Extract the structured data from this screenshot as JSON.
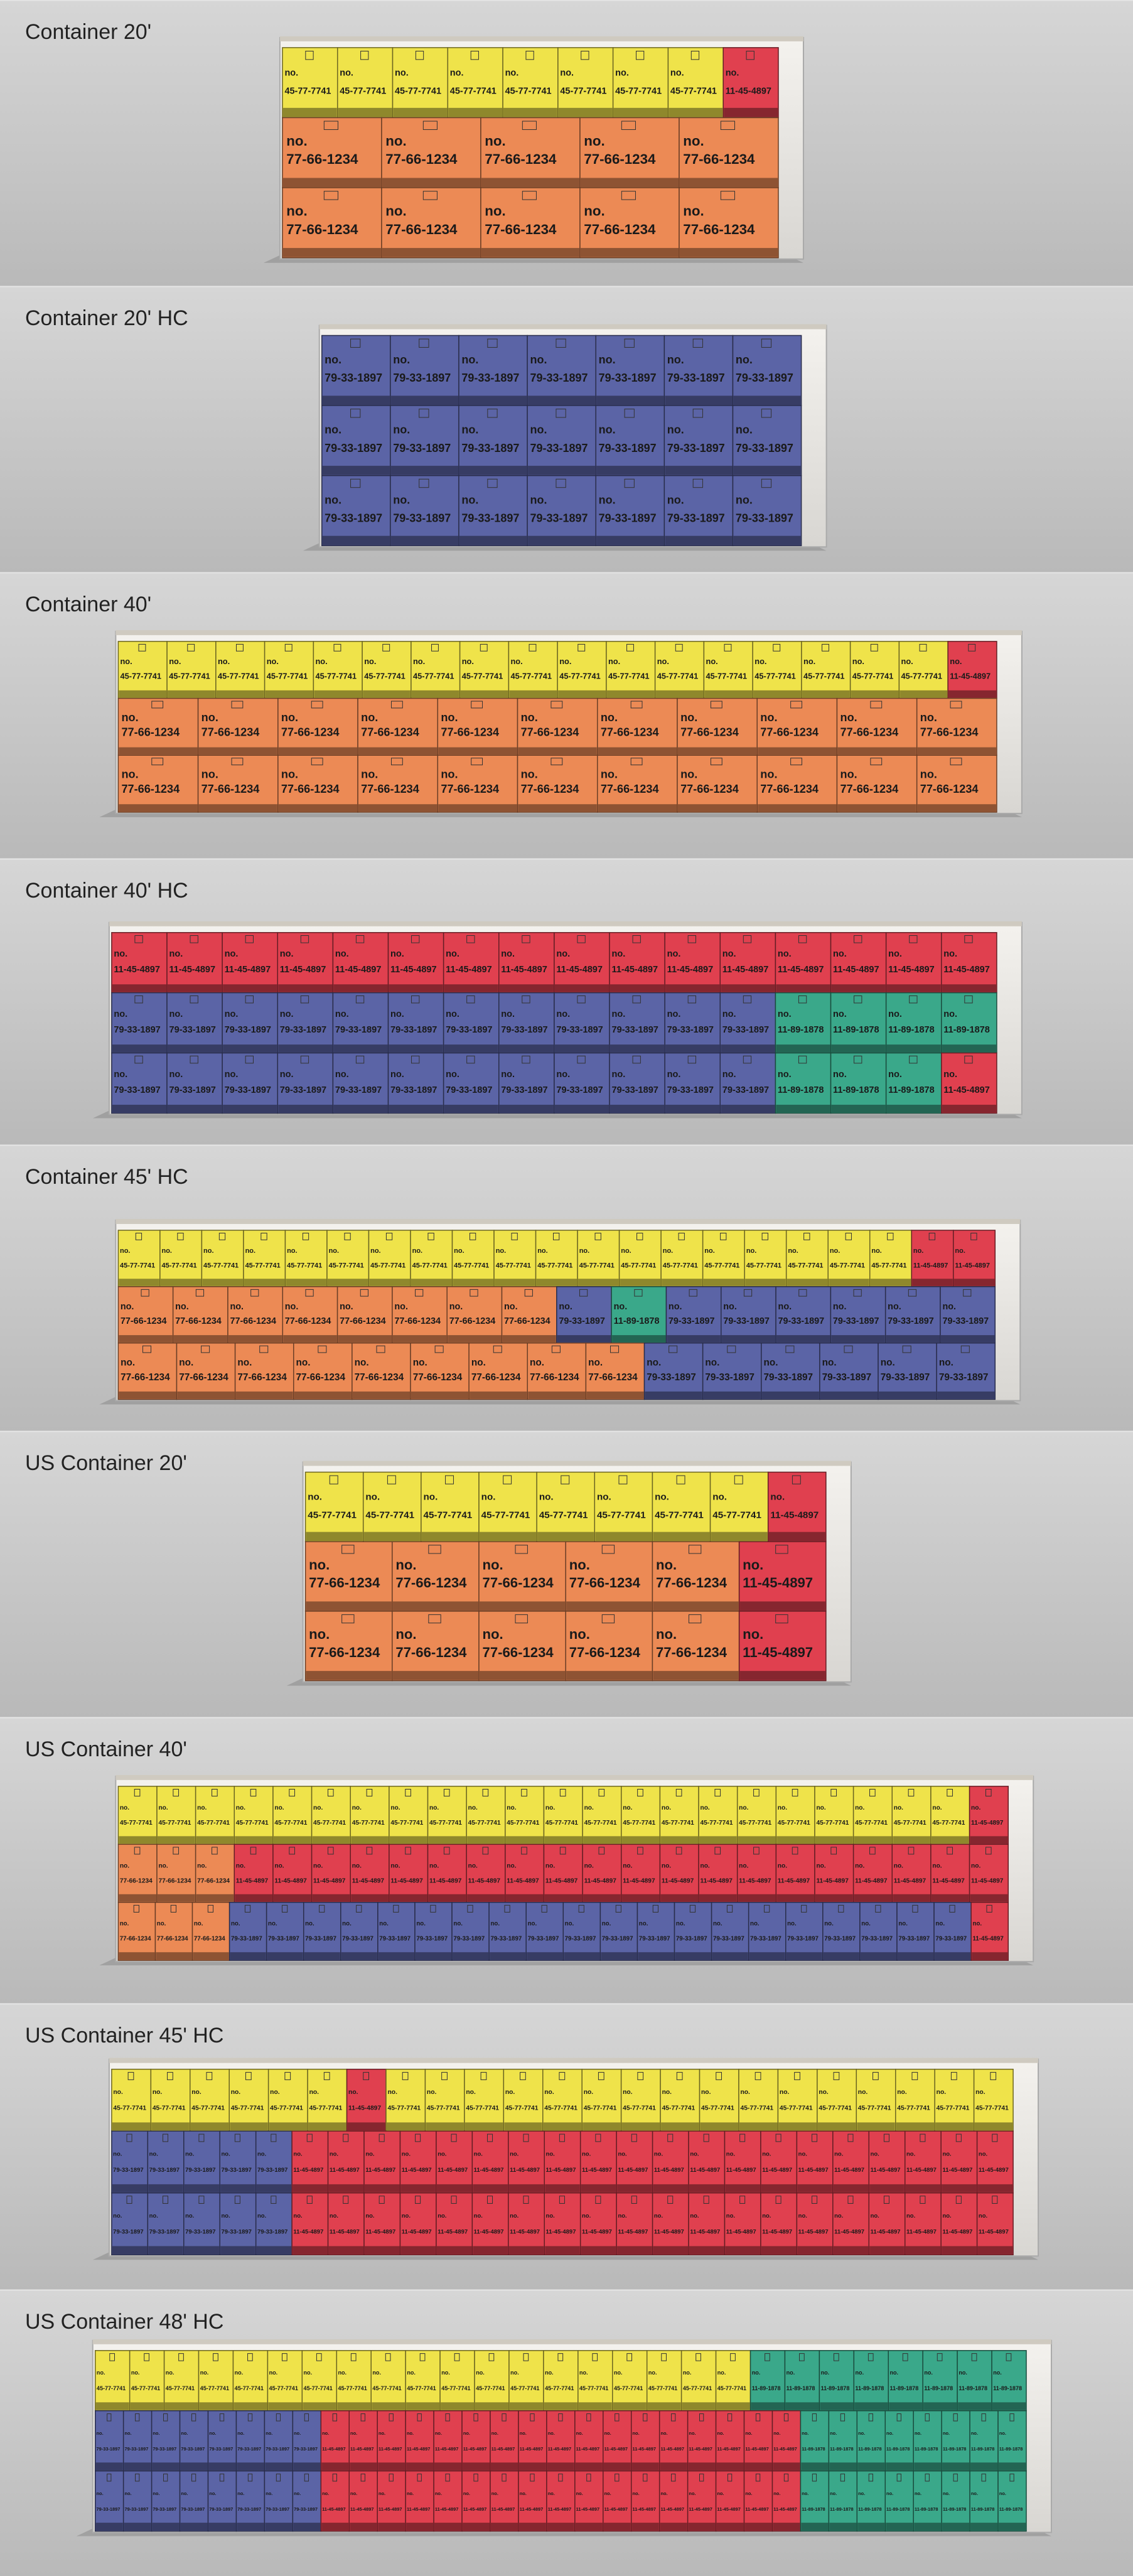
{
  "box_prefix": "no.",
  "colors": {
    "45-77-7741": "#efe34a",
    "77-66-1234": "#ec8a55",
    "79-33-1897": "#5b64a6",
    "11-45-4897": "#e0404f",
    "11-89-1878": "#3aa88a"
  },
  "panels": [
    {
      "title": "Container 20'",
      "rows": [
        [
          "45-77-7741",
          "45-77-7741",
          "45-77-7741",
          "45-77-7741",
          "45-77-7741",
          "45-77-7741",
          "45-77-7741",
          "45-77-7741",
          "11-45-4897"
        ],
        [
          "77-66-1234",
          "77-66-1234",
          "77-66-1234",
          "77-66-1234",
          "77-66-1234"
        ],
        [
          "77-66-1234",
          "77-66-1234",
          "77-66-1234",
          "77-66-1234",
          "77-66-1234"
        ]
      ]
    },
    {
      "title": "Container 20' HC",
      "rows": [
        [
          "79-33-1897",
          "79-33-1897",
          "79-33-1897",
          "79-33-1897",
          "79-33-1897",
          "79-33-1897",
          "79-33-1897"
        ],
        [
          "79-33-1897",
          "79-33-1897",
          "79-33-1897",
          "79-33-1897",
          "79-33-1897",
          "79-33-1897",
          "79-33-1897"
        ],
        [
          "79-33-1897",
          "79-33-1897",
          "79-33-1897",
          "79-33-1897",
          "79-33-1897",
          "79-33-1897",
          "79-33-1897"
        ]
      ]
    },
    {
      "title": "Container 40'",
      "rows": [
        [
          "45-77-7741",
          "45-77-7741",
          "45-77-7741",
          "45-77-7741",
          "45-77-7741",
          "45-77-7741",
          "45-77-7741",
          "45-77-7741",
          "45-77-7741",
          "45-77-7741",
          "45-77-7741",
          "45-77-7741",
          "45-77-7741",
          "45-77-7741",
          "45-77-7741",
          "45-77-7741",
          "45-77-7741",
          "11-45-4897"
        ],
        [
          "77-66-1234",
          "77-66-1234",
          "77-66-1234",
          "77-66-1234",
          "77-66-1234",
          "77-66-1234",
          "77-66-1234",
          "77-66-1234",
          "77-66-1234",
          "77-66-1234",
          "77-66-1234"
        ],
        [
          "77-66-1234",
          "77-66-1234",
          "77-66-1234",
          "77-66-1234",
          "77-66-1234",
          "77-66-1234",
          "77-66-1234",
          "77-66-1234",
          "77-66-1234",
          "77-66-1234",
          "77-66-1234"
        ]
      ]
    },
    {
      "title": "Container 40' HC",
      "rows": [
        [
          "11-45-4897",
          "11-45-4897",
          "11-45-4897",
          "11-45-4897",
          "11-45-4897",
          "11-45-4897",
          "11-45-4897",
          "11-45-4897",
          "11-45-4897",
          "11-45-4897",
          "11-45-4897",
          "11-45-4897",
          "11-45-4897",
          "11-45-4897",
          "11-45-4897",
          "11-45-4897"
        ],
        [
          "79-33-1897",
          "79-33-1897",
          "79-33-1897",
          "79-33-1897",
          "79-33-1897",
          "79-33-1897",
          "79-33-1897",
          "79-33-1897",
          "79-33-1897",
          "79-33-1897",
          "79-33-1897",
          "79-33-1897",
          "11-89-1878",
          "11-89-1878",
          "11-89-1878",
          "11-89-1878"
        ],
        [
          "79-33-1897",
          "79-33-1897",
          "79-33-1897",
          "79-33-1897",
          "79-33-1897",
          "79-33-1897",
          "79-33-1897",
          "79-33-1897",
          "79-33-1897",
          "79-33-1897",
          "79-33-1897",
          "79-33-1897",
          "11-89-1878",
          "11-89-1878",
          "11-89-1878",
          "11-45-4897"
        ]
      ]
    },
    {
      "title": "Container 45' HC",
      "rows": [
        [
          "45-77-7741",
          "45-77-7741",
          "45-77-7741",
          "45-77-7741",
          "45-77-7741",
          "45-77-7741",
          "45-77-7741",
          "45-77-7741",
          "45-77-7741",
          "45-77-7741",
          "45-77-7741",
          "45-77-7741",
          "45-77-7741",
          "45-77-7741",
          "45-77-7741",
          "45-77-7741",
          "45-77-7741",
          "45-77-7741",
          "45-77-7741",
          "11-45-4897",
          "11-45-4897"
        ],
        [
          "77-66-1234",
          "77-66-1234",
          "77-66-1234",
          "77-66-1234",
          "77-66-1234",
          "77-66-1234",
          "77-66-1234",
          "77-66-1234",
          "79-33-1897",
          "11-89-1878",
          "79-33-1897",
          "79-33-1897",
          "79-33-1897",
          "79-33-1897",
          "79-33-1897",
          "79-33-1897"
        ],
        [
          "77-66-1234",
          "77-66-1234",
          "77-66-1234",
          "77-66-1234",
          "77-66-1234",
          "77-66-1234",
          "77-66-1234",
          "77-66-1234",
          "77-66-1234",
          "79-33-1897",
          "79-33-1897",
          "79-33-1897",
          "79-33-1897",
          "79-33-1897",
          "79-33-1897"
        ]
      ]
    },
    {
      "title": "US Container 20'",
      "rows": [
        [
          "45-77-7741",
          "45-77-7741",
          "45-77-7741",
          "45-77-7741",
          "45-77-7741",
          "45-77-7741",
          "45-77-7741",
          "45-77-7741",
          "11-45-4897"
        ],
        [
          "77-66-1234",
          "77-66-1234",
          "77-66-1234",
          "77-66-1234",
          "77-66-1234",
          "11-45-4897"
        ],
        [
          "77-66-1234",
          "77-66-1234",
          "77-66-1234",
          "77-66-1234",
          "77-66-1234",
          "11-45-4897"
        ]
      ]
    },
    {
      "title": "US Container 40'",
      "rows": [
        [
          "45-77-7741",
          "45-77-7741",
          "45-77-7741",
          "45-77-7741",
          "45-77-7741",
          "45-77-7741",
          "45-77-7741",
          "45-77-7741",
          "45-77-7741",
          "45-77-7741",
          "45-77-7741",
          "45-77-7741",
          "45-77-7741",
          "45-77-7741",
          "45-77-7741",
          "45-77-7741",
          "45-77-7741",
          "45-77-7741",
          "45-77-7741",
          "45-77-7741",
          "45-77-7741",
          "45-77-7741",
          "11-45-4897"
        ],
        [
          "77-66-1234",
          "77-66-1234",
          "77-66-1234",
          "11-45-4897",
          "11-45-4897",
          "11-45-4897",
          "11-45-4897",
          "11-45-4897",
          "11-45-4897",
          "11-45-4897",
          "11-45-4897",
          "11-45-4897",
          "11-45-4897",
          "11-45-4897",
          "11-45-4897",
          "11-45-4897",
          "11-45-4897",
          "11-45-4897",
          "11-45-4897",
          "11-45-4897",
          "11-45-4897",
          "11-45-4897",
          "11-45-4897"
        ],
        [
          "77-66-1234",
          "77-66-1234",
          "77-66-1234",
          "79-33-1897",
          "79-33-1897",
          "79-33-1897",
          "79-33-1897",
          "79-33-1897",
          "79-33-1897",
          "79-33-1897",
          "79-33-1897",
          "79-33-1897",
          "79-33-1897",
          "79-33-1897",
          "79-33-1897",
          "79-33-1897",
          "79-33-1897",
          "79-33-1897",
          "79-33-1897",
          "79-33-1897",
          "79-33-1897",
          "79-33-1897",
          "79-33-1897",
          "11-45-4897"
        ]
      ]
    },
    {
      "title": "US Container 45' HC",
      "rows": [
        [
          "45-77-7741",
          "45-77-7741",
          "45-77-7741",
          "45-77-7741",
          "45-77-7741",
          "45-77-7741",
          "11-45-4897",
          "45-77-7741",
          "45-77-7741",
          "45-77-7741",
          "45-77-7741",
          "45-77-7741",
          "45-77-7741",
          "45-77-7741",
          "45-77-7741",
          "45-77-7741",
          "45-77-7741",
          "45-77-7741",
          "45-77-7741",
          "45-77-7741",
          "45-77-7741",
          "45-77-7741",
          "45-77-7741"
        ],
        [
          "79-33-1897",
          "79-33-1897",
          "79-33-1897",
          "79-33-1897",
          "79-33-1897",
          "11-45-4897",
          "11-45-4897",
          "11-45-4897",
          "11-45-4897",
          "11-45-4897",
          "11-45-4897",
          "11-45-4897",
          "11-45-4897",
          "11-45-4897",
          "11-45-4897",
          "11-45-4897",
          "11-45-4897",
          "11-45-4897",
          "11-45-4897",
          "11-45-4897",
          "11-45-4897",
          "11-45-4897",
          "11-45-4897",
          "11-45-4897",
          "11-45-4897"
        ],
        [
          "79-33-1897",
          "79-33-1897",
          "79-33-1897",
          "79-33-1897",
          "79-33-1897",
          "11-45-4897",
          "11-45-4897",
          "11-45-4897",
          "11-45-4897",
          "11-45-4897",
          "11-45-4897",
          "11-45-4897",
          "11-45-4897",
          "11-45-4897",
          "11-45-4897",
          "11-45-4897",
          "11-45-4897",
          "11-45-4897",
          "11-45-4897",
          "11-45-4897",
          "11-45-4897",
          "11-45-4897",
          "11-45-4897",
          "11-45-4897",
          "11-45-4897"
        ]
      ]
    },
    {
      "title": "US Container 48' HC",
      "rows": [
        [
          "45-77-7741",
          "45-77-7741",
          "45-77-7741",
          "45-77-7741",
          "45-77-7741",
          "45-77-7741",
          "45-77-7741",
          "45-77-7741",
          "45-77-7741",
          "45-77-7741",
          "45-77-7741",
          "45-77-7741",
          "45-77-7741",
          "45-77-7741",
          "45-77-7741",
          "45-77-7741",
          "45-77-7741",
          "45-77-7741",
          "45-77-7741",
          "11-89-1878",
          "11-89-1878",
          "11-89-1878",
          "11-89-1878",
          "11-89-1878",
          "11-89-1878",
          "11-89-1878",
          "11-89-1878"
        ],
        [
          "79-33-1897",
          "79-33-1897",
          "79-33-1897",
          "79-33-1897",
          "79-33-1897",
          "79-33-1897",
          "79-33-1897",
          "79-33-1897",
          "11-45-4897",
          "11-45-4897",
          "11-45-4897",
          "11-45-4897",
          "11-45-4897",
          "11-45-4897",
          "11-45-4897",
          "11-45-4897",
          "11-45-4897",
          "11-45-4897",
          "11-45-4897",
          "11-45-4897",
          "11-45-4897",
          "11-45-4897",
          "11-45-4897",
          "11-45-4897",
          "11-45-4897",
          "11-89-1878",
          "11-89-1878",
          "11-89-1878",
          "11-89-1878",
          "11-89-1878",
          "11-89-1878",
          "11-89-1878",
          "11-89-1878"
        ],
        [
          "79-33-1897",
          "79-33-1897",
          "79-33-1897",
          "79-33-1897",
          "79-33-1897",
          "79-33-1897",
          "79-33-1897",
          "79-33-1897",
          "11-45-4897",
          "11-45-4897",
          "11-45-4897",
          "11-45-4897",
          "11-45-4897",
          "11-45-4897",
          "11-45-4897",
          "11-45-4897",
          "11-45-4897",
          "11-45-4897",
          "11-45-4897",
          "11-45-4897",
          "11-45-4897",
          "11-45-4897",
          "11-45-4897",
          "11-45-4897",
          "11-45-4897",
          "11-89-1878",
          "11-89-1878",
          "11-89-1878",
          "11-89-1878",
          "11-89-1878",
          "11-89-1878",
          "11-89-1878",
          "11-89-1878"
        ]
      ]
    }
  ]
}
